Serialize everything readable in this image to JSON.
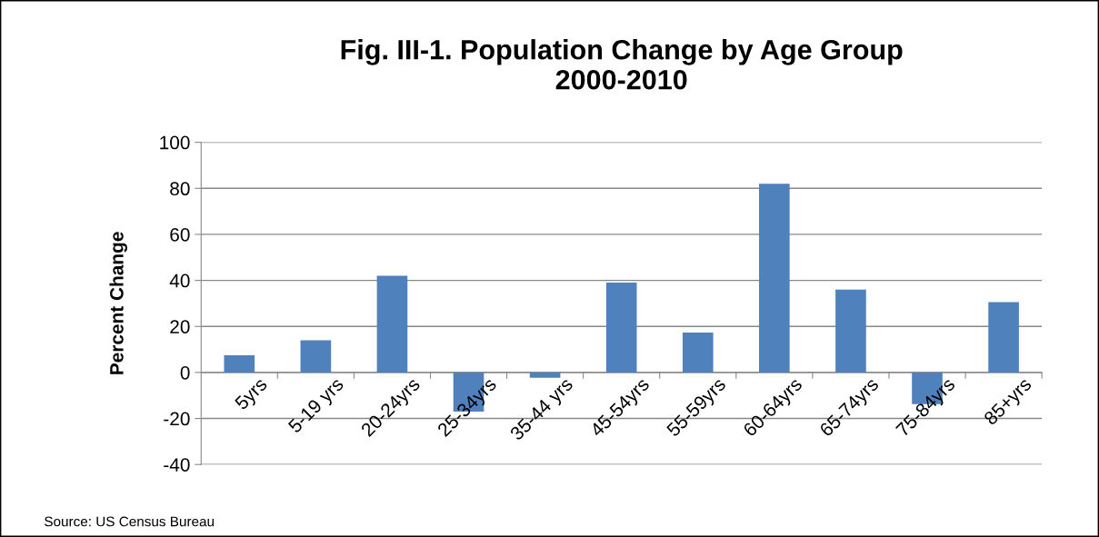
{
  "chart_data": {
    "type": "bar",
    "title": "Fig. III-1. Population Change by Age Group\n2000-2010",
    "ylabel": "Percent Change",
    "categories": [
      "5yrs",
      "5-19 yrs",
      "20-24yrs",
      "25-34yrs",
      "35-44 yrs",
      "45-54yrs",
      "55-59yrs",
      "60-64yrs",
      "65-74yrs",
      "75-84yrs",
      "85+yrs"
    ],
    "values": [
      7.5,
      14,
      42,
      -17,
      -2.3,
      39,
      17.3,
      82,
      36,
      -13.8,
      30.6
    ],
    "color": "#4f81bd",
    "ylim": [
      -40,
      100
    ],
    "yticks": [
      -40,
      -20,
      0,
      20,
      40,
      60,
      80,
      100
    ],
    "grid": "y",
    "annotations": [
      "Source: US Census Bureau"
    ]
  }
}
